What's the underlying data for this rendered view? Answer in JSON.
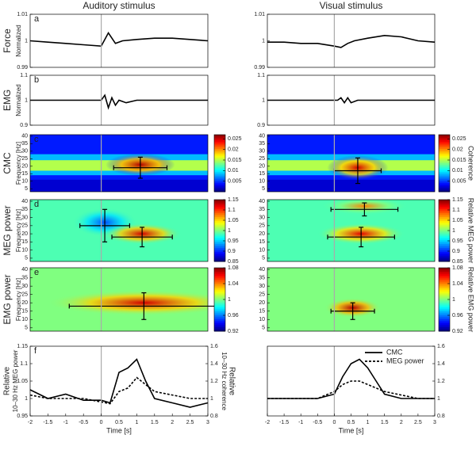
{
  "chart_data": [
    {
      "type": "line",
      "title": "Auditory stimulus",
      "panel": "a",
      "group": "Force",
      "ylabel": "Normalized",
      "xlim": [
        -2,
        3
      ],
      "ylim": [
        0.99,
        1.01
      ],
      "yticks": [
        0.99,
        1,
        1.01
      ],
      "x": [
        -2,
        -1.5,
        -1,
        -0.5,
        0,
        0.2,
        0.4,
        0.6,
        1,
        1.5,
        2,
        2.5,
        3
      ],
      "series": [
        {
          "color": "#000000",
          "values": [
            1,
            0.9995,
            0.999,
            0.9985,
            0.998,
            1.003,
            0.999,
            1.0,
            1.0005,
            1.001,
            1.001,
            1.0005,
            1.0
          ]
        }
      ]
    },
    {
      "type": "line",
      "title": "Visual stimulus",
      "xlim": [
        -2,
        3
      ],
      "ylim": [
        0.99,
        1.01
      ],
      "yticks": [
        0.99,
        1,
        1.01
      ],
      "x": [
        -2,
        -1.5,
        -1,
        -0.5,
        0,
        0.2,
        0.4,
        0.6,
        1,
        1.5,
        2,
        2.5,
        3
      ],
      "series": [
        {
          "color": "#000000",
          "values": [
            0.9995,
            0.9995,
            0.999,
            0.999,
            0.998,
            0.9975,
            0.999,
            1.0,
            1.001,
            1.002,
            1.0015,
            1.0,
            0.9995
          ]
        }
      ]
    },
    {
      "type": "line",
      "panel": "b",
      "group": "EMG",
      "ylabel": "Normalized",
      "xlim": [
        -2,
        3
      ],
      "ylim": [
        0.9,
        1.1
      ],
      "yticks": [
        0.9,
        1,
        1.1
      ],
      "x": [
        -2,
        -1,
        -0.5,
        0,
        0.1,
        0.2,
        0.3,
        0.4,
        0.5,
        0.7,
        1,
        2,
        3
      ],
      "series": [
        {
          "color": "#000000",
          "values": [
            1,
            1,
            1,
            1,
            1.02,
            0.97,
            1.01,
            0.98,
            1.0,
            0.99,
            1,
            1,
            1
          ]
        }
      ]
    },
    {
      "type": "line",
      "xlim": [
        -2,
        3
      ],
      "ylim": [
        0.9,
        1.1
      ],
      "yticks": [
        0.9,
        1,
        1.1
      ],
      "x": [
        -2,
        -1,
        -0.5,
        0,
        0.1,
        0.2,
        0.3,
        0.4,
        0.5,
        0.7,
        1,
        2,
        3
      ],
      "series": [
        {
          "color": "#000000",
          "values": [
            1,
            1,
            1,
            1,
            1,
            1.01,
            0.99,
            1.01,
            0.99,
            1,
            1,
            1,
            1
          ]
        }
      ]
    },
    {
      "type": "heatmap",
      "panel": "c",
      "group": "CMC",
      "ylabel": "Frequency [Hz]",
      "xlim": [
        -2,
        3
      ],
      "ylim": [
        3,
        41
      ],
      "yticks": [
        5,
        10,
        15,
        20,
        25,
        30,
        35,
        40
      ],
      "crosses": [
        {
          "x": 1.1,
          "y": 19,
          "xerr": 0.75,
          "yerr": 7
        }
      ],
      "colorbar": {
        "lim": [
          0,
          0.027
        ],
        "ticks": [
          0.005,
          0.01,
          0.015,
          0.02,
          0.025
        ]
      }
    },
    {
      "type": "heatmap",
      "xlim": [
        -2,
        3
      ],
      "ylim": [
        3,
        41
      ],
      "yticks": [
        5,
        10,
        15,
        20,
        25,
        30,
        35,
        40
      ],
      "crosses": [
        {
          "x": 0.7,
          "y": 17,
          "xerr": 0.7,
          "yerr": 8.5
        }
      ],
      "colorbar": {
        "lim": [
          0,
          0.027
        ],
        "ticks": [
          0.005,
          0.01,
          0.015,
          0.02,
          0.025
        ],
        "label": "Coherence"
      }
    },
    {
      "type": "heatmap",
      "panel": "d",
      "group": "MEG power",
      "ylabel": "Frequency [Hz]",
      "xlim": [
        -2,
        3
      ],
      "ylim": [
        3,
        41
      ],
      "yticks": [
        5,
        10,
        15,
        20,
        25,
        30,
        35,
        40
      ],
      "crosses": [
        {
          "x": 0.1,
          "y": 25,
          "xerr": 0.7,
          "yerr": 10
        },
        {
          "x": 1.15,
          "y": 18,
          "xerr": 0.85,
          "yerr": 6
        }
      ],
      "colorbar": {
        "lim": [
          0.85,
          1.15
        ],
        "ticks": [
          0.85,
          0.9,
          0.95,
          1,
          1.05,
          1.1,
          1.15
        ]
      }
    },
    {
      "type": "heatmap",
      "xlim": [
        -2,
        3
      ],
      "ylim": [
        3,
        41
      ],
      "yticks": [
        5,
        10,
        15,
        20,
        25,
        30,
        35,
        40
      ],
      "crosses": [
        {
          "x": 0.9,
          "y": 35,
          "xerr": 1.0,
          "yerr": 4
        },
        {
          "x": 0.8,
          "y": 18,
          "xerr": 1.0,
          "yerr": 6
        }
      ],
      "colorbar": {
        "lim": [
          0.85,
          1.15
        ],
        "ticks": [
          0.85,
          0.9,
          0.95,
          1,
          1.05,
          1.1,
          1.15
        ],
        "label": "Relative MEG power"
      }
    },
    {
      "type": "heatmap",
      "panel": "e",
      "group": "EMG power",
      "ylabel": "Frequency [Hz]",
      "xlim": [
        -2,
        3
      ],
      "ylim": [
        3,
        41
      ],
      "yticks": [
        5,
        10,
        15,
        20,
        25,
        30,
        35,
        40
      ],
      "crosses": [
        {
          "x": 1.2,
          "y": 18,
          "xerr": 2.1,
          "yerr": 8
        }
      ],
      "colorbar": {
        "lim": [
          0.92,
          1.08
        ],
        "ticks": [
          0.92,
          0.96,
          1,
          1.04,
          1.08
        ]
      }
    },
    {
      "type": "heatmap",
      "xlim": [
        -2,
        3
      ],
      "ylim": [
        3,
        41
      ],
      "yticks": [
        5,
        10,
        15,
        20,
        25,
        30,
        35,
        40
      ],
      "crosses": [
        {
          "x": 0.55,
          "y": 15,
          "xerr": 0.65,
          "yerr": 5
        }
      ],
      "colorbar": {
        "lim": [
          0.92,
          1.08
        ],
        "ticks": [
          0.92,
          0.96,
          1,
          1.04,
          1.08
        ],
        "label": "Relative EMG power"
      }
    },
    {
      "type": "line",
      "panel": "f",
      "ylabel": [
        "Relative",
        "10–30 Hz MEG power"
      ],
      "y2label": [
        "Relative",
        "10–30 Hz coherence"
      ],
      "xlabel": "Time [s]",
      "xlim": [
        -2,
        3
      ],
      "xticks": [
        -2,
        -1.5,
        -1,
        -0.5,
        0,
        0.5,
        1,
        1.5,
        2,
        2.5,
        3
      ],
      "ylim": [
        0.95,
        1.15
      ],
      "yticks": [
        0.95,
        1,
        1.05,
        1.1,
        1.15
      ],
      "y2lim": [
        0.8,
        1.6
      ],
      "y2ticks": [
        0.8,
        1,
        1.2,
        1.4,
        1.6
      ],
      "x": [
        -2,
        -1.5,
        -1,
        -0.5,
        0,
        0.25,
        0.5,
        0.75,
        1,
        1.25,
        1.5,
        2,
        2.5,
        3
      ],
      "series": [
        {
          "color": "#000000",
          "axis": "y2",
          "values": [
            1.1,
            1.0,
            1.05,
            0.98,
            0.98,
            0.95,
            1.3,
            1.35,
            1.45,
            1.2,
            1.0,
            0.95,
            0.9,
            0.95
          ]
        },
        {
          "color": "#000000",
          "dash": true,
          "values": [
            1.01,
            1.0,
            1.0,
            1.0,
            0.99,
            0.985,
            1.02,
            1.03,
            1.06,
            1.04,
            1.02,
            1.01,
            1.0,
            1.0
          ]
        }
      ]
    },
    {
      "type": "line",
      "xlabel": "Time [s]",
      "legend": "upper right",
      "xlim": [
        -2,
        3
      ],
      "xticks": [
        -2,
        -1.5,
        -1,
        -0.5,
        0,
        0.5,
        1,
        1.5,
        2,
        2.5,
        3
      ],
      "ylim": [
        0.95,
        1.15
      ],
      "y2lim": [
        0.8,
        1.6
      ],
      "y2ticks": [
        0.8,
        1,
        1.2,
        1.4,
        1.6
      ],
      "x": [
        -2,
        -1.5,
        -1,
        -0.5,
        0,
        0.25,
        0.5,
        0.75,
        1,
        1.25,
        1.5,
        2,
        2.5,
        3
      ],
      "series": [
        {
          "name": "CMC",
          "color": "#000000",
          "axis": "y2",
          "values": [
            1.0,
            1.0,
            1.0,
            1.0,
            1.05,
            1.25,
            1.4,
            1.45,
            1.35,
            1.2,
            1.05,
            1.0,
            1.0,
            1.0
          ]
        },
        {
          "name": "MEG power",
          "color": "#000000",
          "dash": true,
          "values": [
            1.0,
            1.0,
            1.0,
            1.0,
            1.02,
            1.04,
            1.05,
            1.05,
            1.04,
            1.03,
            1.02,
            1.01,
            1.0,
            1.0
          ]
        }
      ]
    }
  ]
}
